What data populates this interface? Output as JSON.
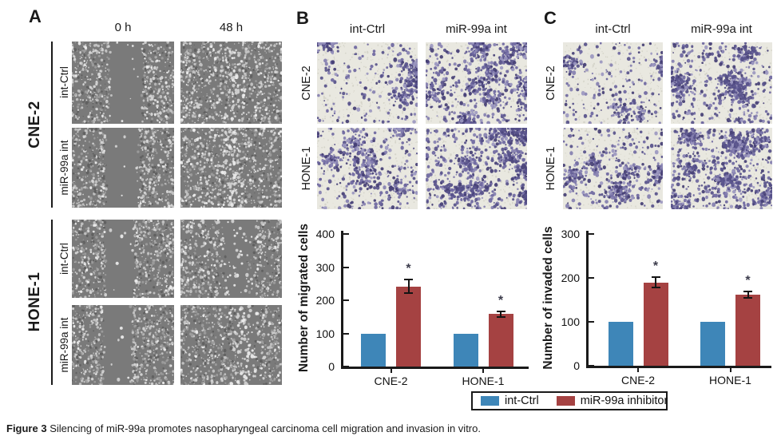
{
  "panels": {
    "A": {
      "label": "A",
      "col_headers": [
        "0 h",
        "48 h"
      ],
      "groups": [
        {
          "label": "CNE-2",
          "rows": [
            "int-Ctrl",
            "miR-99a int"
          ]
        },
        {
          "label": "HONE-1",
          "rows": [
            "int-Ctrl",
            "miR-99a int"
          ]
        }
      ]
    },
    "B": {
      "label": "B",
      "col_headers": [
        "int-Ctrl",
        "miR-99a int"
      ],
      "row_headers": [
        "CNE-2",
        "HONE-1"
      ]
    },
    "C": {
      "label": "C",
      "col_headers": [
        "int-Ctrl",
        "miR-99a int"
      ],
      "row_headers": [
        "CNE-2",
        "HONE-1"
      ]
    }
  },
  "chart_data": [
    {
      "type": "bar",
      "panel": "B",
      "title": "",
      "ylabel": "Number of migrated cells",
      "xlabel": "",
      "categories": [
        "CNE-2",
        "HONE-1"
      ],
      "series": [
        {
          "name": "int-Ctrl",
          "color": "#3e86b8",
          "values": [
            100,
            100
          ]
        },
        {
          "name": "miR-99a inhibitor",
          "color": "#a54242",
          "values": [
            242,
            158
          ],
          "errors": [
            20,
            9
          ],
          "annotations": [
            "*",
            "*"
          ]
        }
      ],
      "ylim": [
        0,
        400
      ],
      "yticks": [
        0,
        100,
        200,
        300,
        400
      ],
      "grid": false,
      "legend_position": "shared-bottom"
    },
    {
      "type": "bar",
      "panel": "C",
      "title": "",
      "ylabel": "Number of invaded cells",
      "xlabel": "",
      "categories": [
        "CNE-2",
        "HONE-1"
      ],
      "series": [
        {
          "name": "int-Ctrl",
          "color": "#3e86b8",
          "values": [
            100,
            100
          ]
        },
        {
          "name": "miR-99a inhibitor",
          "color": "#a54242",
          "values": [
            190,
            162
          ],
          "errors": [
            11,
            7
          ],
          "annotations": [
            "*",
            "*"
          ]
        }
      ],
      "ylim": [
        0,
        300
      ],
      "yticks": [
        0,
        100,
        200,
        300
      ],
      "grid": false,
      "legend_position": "shared-bottom"
    }
  ],
  "legend": {
    "items": [
      {
        "label": "int-Ctrl",
        "color": "#3e86b8"
      },
      {
        "label": "miR-99a inhibitor",
        "color": "#a54242"
      }
    ]
  },
  "caption": {
    "prefix": "Figure 3",
    "text": "Silencing of miR-99a promotes nasopharyngeal carcinoma cell migration and invasion in vitro."
  },
  "colors": {
    "control_blue": "#3e86b8",
    "inhibitor_red": "#a54242"
  }
}
